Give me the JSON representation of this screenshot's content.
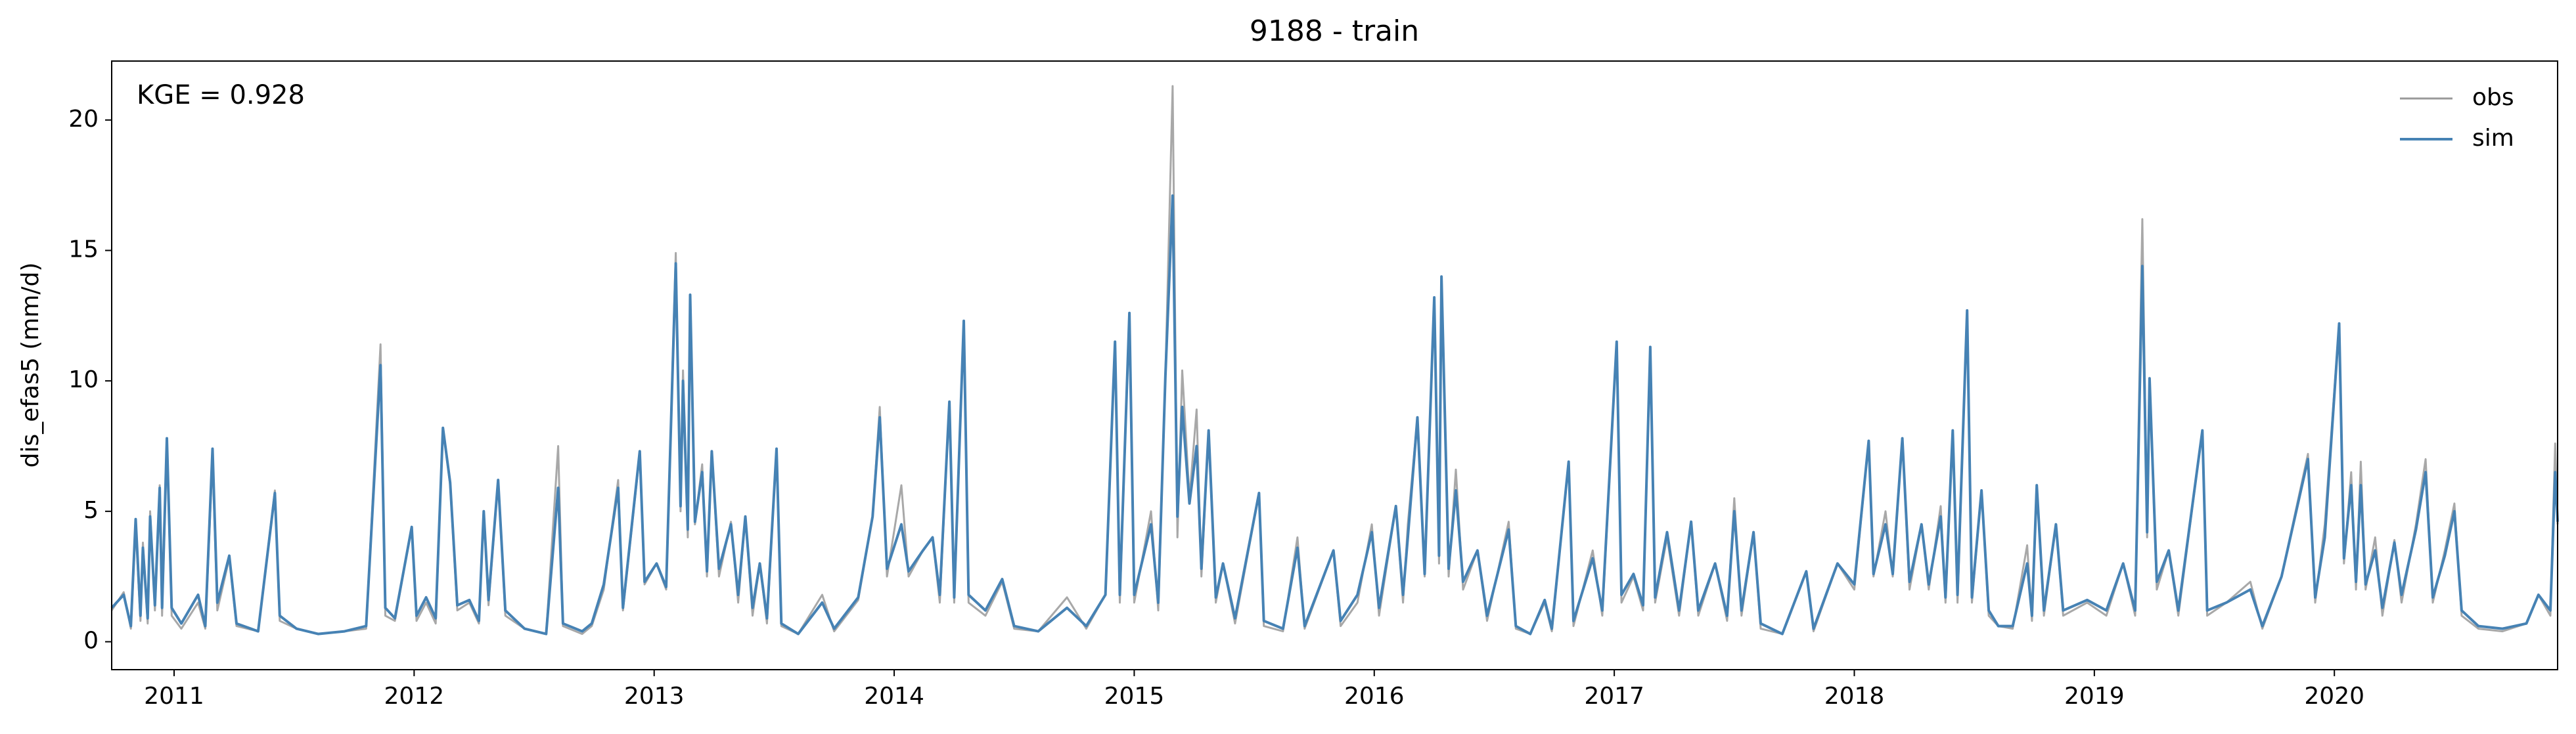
{
  "chart_data": {
    "type": "line",
    "title": "9188 - train",
    "ylabel": "dis_efas5 (mm/d)",
    "annotation": "KGE = 0.928",
    "legend": "upper right",
    "x": [
      2010.74,
      2010.79,
      2010.82,
      2010.84,
      2010.86,
      2010.87,
      2010.89,
      2010.9,
      2010.92,
      2010.94,
      2010.95,
      2010.97,
      2010.99,
      2011.03,
      2011.1,
      2011.13,
      2011.16,
      2011.18,
      2011.23,
      2011.26,
      2011.35,
      2011.42,
      2011.44,
      2011.51,
      2011.6,
      2011.71,
      2011.8,
      2011.86,
      2011.88,
      2011.92,
      2011.99,
      2012.01,
      2012.05,
      2012.09,
      2012.12,
      2012.15,
      2012.18,
      2012.23,
      2012.27,
      2012.29,
      2012.31,
      2012.35,
      2012.38,
      2012.46,
      2012.55,
      2012.6,
      2012.62,
      2012.7,
      2012.74,
      2012.79,
      2012.85,
      2012.87,
      2012.94,
      2012.96,
      2013.01,
      2013.05,
      2013.09,
      2013.11,
      2013.12,
      2013.14,
      2013.15,
      2013.17,
      2013.2,
      2013.22,
      2013.24,
      2013.27,
      2013.32,
      2013.35,
      2013.38,
      2013.41,
      2013.44,
      2013.47,
      2013.51,
      2013.53,
      2013.6,
      2013.7,
      2013.75,
      2013.85,
      2013.91,
      2013.94,
      2013.97,
      2014.03,
      2014.06,
      2014.12,
      2014.16,
      2014.19,
      2014.23,
      2014.25,
      2014.29,
      2014.31,
      2014.38,
      2014.45,
      2014.5,
      2014.6,
      2014.72,
      2014.8,
      2014.88,
      2014.92,
      2014.94,
      2014.98,
      2015,
      2015.07,
      2015.1,
      2015.13,
      2015.16,
      2015.18,
      2015.2,
      2015.23,
      2015.26,
      2015.28,
      2015.31,
      2015.34,
      2015.37,
      2015.42,
      2015.52,
      2015.54,
      2015.62,
      2015.68,
      2015.71,
      2015.83,
      2015.86,
      2015.93,
      2015.99,
      2016.02,
      2016.09,
      2016.12,
      2016.14,
      2016.18,
      2016.21,
      2016.25,
      2016.27,
      2016.28,
      2016.31,
      2016.34,
      2016.37,
      2016.43,
      2016.47,
      2016.56,
      2016.59,
      2016.65,
      2016.71,
      2016.74,
      2016.81,
      2016.83,
      2016.91,
      2016.95,
      2017.01,
      2017.03,
      2017.08,
      2017.12,
      2017.15,
      2017.17,
      2017.22,
      2017.27,
      2017.32,
      2017.35,
      2017.42,
      2017.47,
      2017.5,
      2017.53,
      2017.58,
      2017.61,
      2017.7,
      2017.8,
      2017.83,
      2017.93,
      2018,
      2018.06,
      2018.08,
      2018.13,
      2018.16,
      2018.2,
      2018.23,
      2018.28,
      2018.31,
      2018.36,
      2018.38,
      2018.41,
      2018.43,
      2018.47,
      2018.49,
      2018.53,
      2018.56,
      2018.6,
      2018.66,
      2018.72,
      2018.74,
      2018.76,
      2018.79,
      2018.84,
      2018.87,
      2018.97,
      2019.05,
      2019.12,
      2019.17,
      2019.2,
      2019.22,
      2019.23,
      2019.26,
      2019.31,
      2019.35,
      2019.45,
      2019.47,
      2019.55,
      2019.65,
      2019.7,
      2019.78,
      2019.89,
      2019.92,
      2019.96,
      2020.02,
      2020.04,
      2020.07,
      2020.09,
      2020.11,
      2020.13,
      2020.17,
      2020.2,
      2020.25,
      2020.28,
      2020.34,
      2020.38,
      2020.41,
      2020.46,
      2020.5,
      2020.53,
      2020.6,
      2020.7,
      2020.8,
      2020.85,
      2020.9,
      2020.92,
      2020.93
    ],
    "series": [
      {
        "name": "obs",
        "color": "#999999",
        "values": [
          1.2,
          1.9,
          0.5,
          4.4,
          0.8,
          3.8,
          0.7,
          5,
          1.2,
          6,
          1,
          7.6,
          1,
          0.5,
          1.5,
          0.5,
          7,
          1.2,
          3.2,
          0.6,
          0.4,
          5.8,
          0.8,
          0.5,
          0.3,
          0.4,
          0.5,
          11.4,
          1,
          0.8,
          4.4,
          0.8,
          1.5,
          0.7,
          8.2,
          6,
          1.2,
          1.5,
          0.7,
          5,
          1.4,
          6.2,
          1,
          0.5,
          0.3,
          7.5,
          0.6,
          0.3,
          0.6,
          2,
          6.2,
          1.2,
          7.2,
          2.2,
          3,
          2,
          14.9,
          5,
          10.4,
          4,
          13.3,
          4.5,
          6.8,
          2.5,
          7.3,
          2.5,
          4.6,
          1.5,
          4.8,
          1,
          3,
          0.7,
          7.4,
          0.6,
          0.3,
          1.8,
          0.4,
          1.6,
          4.8,
          9,
          2.5,
          6,
          2.5,
          3.5,
          4,
          1.5,
          9.2,
          1.5,
          12.3,
          1.5,
          1,
          2.3,
          0.5,
          0.4,
          1.7,
          0.5,
          1.8,
          11.5,
          1.5,
          12.6,
          1.5,
          5,
          1.2,
          10.2,
          21.3,
          4,
          10.4,
          5.5,
          8.9,
          2.5,
          8.1,
          1.5,
          3,
          0.7,
          5.7,
          0.6,
          0.4,
          4,
          0.5,
          3.5,
          0.6,
          1.5,
          4.5,
          1,
          5.2,
          1.5,
          4.5,
          8.6,
          2.5,
          13.2,
          3,
          14,
          2.5,
          6.6,
          2,
          3.5,
          0.8,
          4.6,
          0.5,
          0.3,
          1.5,
          0.4,
          6.9,
          0.6,
          3.5,
          1,
          11.5,
          1.5,
          2.5,
          1.2,
          11.3,
          1.5,
          4,
          1,
          4.6,
          1,
          3,
          0.8,
          5.5,
          1,
          4.2,
          0.5,
          0.3,
          2.7,
          0.4,
          3,
          2,
          7.7,
          2.5,
          5,
          2.5,
          7.8,
          2,
          4.5,
          2,
          5.2,
          1.5,
          8.1,
          1.5,
          12.7,
          1.5,
          5.8,
          1,
          0.6,
          0.5,
          3.7,
          0.8,
          6,
          1,
          4.5,
          1,
          1.5,
          1,
          3,
          1,
          16.2,
          4,
          10.1,
          2,
          3.5,
          1,
          8.1,
          1,
          1.5,
          2.3,
          0.5,
          2.5,
          7.2,
          1.5,
          4.5,
          12.2,
          3,
          6.5,
          2,
          6.9,
          2,
          4,
          1,
          3.9,
          1.5,
          4.5,
          7,
          1.5,
          3.5,
          5.3,
          1,
          0.5,
          0.4,
          0.7,
          1.8,
          1,
          7.6,
          4.5
        ]
      },
      {
        "name": "sim",
        "color": "#4682b4",
        "values": [
          1.3,
          1.8,
          0.6,
          4.7,
          1,
          3.6,
          0.9,
          4.8,
          1.4,
          5.9,
          1.3,
          7.8,
          1.3,
          0.7,
          1.8,
          0.6,
          7.4,
          1.5,
          3.3,
          0.7,
          0.4,
          5.7,
          1,
          0.5,
          0.3,
          0.4,
          0.6,
          10.6,
          1.3,
          0.9,
          4.4,
          1,
          1.7,
          0.9,
          8.2,
          6.1,
          1.4,
          1.6,
          0.8,
          5,
          1.6,
          6.2,
          1.2,
          0.5,
          0.3,
          5.9,
          0.7,
          0.4,
          0.7,
          2.2,
          5.9,
          1.3,
          7.3,
          2.3,
          3,
          2.1,
          14.5,
          5.2,
          10,
          4.3,
          13.3,
          4.6,
          6.5,
          2.7,
          7.3,
          2.8,
          4.5,
          1.8,
          4.8,
          1.3,
          3,
          0.9,
          7.4,
          0.7,
          0.3,
          1.5,
          0.5,
          1.7,
          4.8,
          8.6,
          2.8,
          4.5,
          2.7,
          3.5,
          4,
          1.8,
          9.2,
          1.7,
          12.3,
          1.8,
          1.2,
          2.4,
          0.6,
          0.4,
          1.3,
          0.6,
          1.8,
          11.5,
          1.8,
          12.6,
          1.8,
          4.5,
          1.5,
          10.2,
          17.1,
          4.8,
          9,
          5.3,
          7.5,
          2.8,
          8.1,
          1.7,
          3,
          0.9,
          5.7,
          0.8,
          0.5,
          3.6,
          0.6,
          3.5,
          0.8,
          1.8,
          4.2,
          1.3,
          5.2,
          1.8,
          4,
          8.6,
          2.6,
          13.2,
          3.3,
          14,
          2.8,
          5.8,
          2.3,
          3.5,
          1,
          4.3,
          0.6,
          0.3,
          1.6,
          0.5,
          6.9,
          0.8,
          3.2,
          1.2,
          11.5,
          1.8,
          2.6,
          1.4,
          11.3,
          1.7,
          4.2,
          1.2,
          4.6,
          1.2,
          3,
          1,
          5,
          1.2,
          4.2,
          0.7,
          0.3,
          2.7,
          0.5,
          3,
          2.2,
          7.7,
          2.6,
          4.5,
          2.6,
          7.8,
          2.3,
          4.5,
          2.2,
          4.8,
          1.7,
          8.1,
          1.8,
          12.7,
          1.7,
          5.8,
          1.2,
          0.6,
          0.6,
          3,
          1,
          6,
          1.2,
          4.5,
          1.2,
          1.6,
          1.2,
          3,
          1.2,
          14.4,
          4.2,
          10.1,
          2.3,
          3.5,
          1.2,
          8.1,
          1.2,
          1.5,
          2,
          0.6,
          2.5,
          7,
          1.7,
          4,
          12.2,
          3.2,
          6,
          2.3,
          6,
          2.2,
          3.5,
          1.3,
          3.8,
          1.8,
          4.3,
          6.5,
          1.7,
          3.3,
          5,
          1.2,
          0.6,
          0.5,
          0.7,
          1.8,
          1.2,
          6.5,
          4.6
        ]
      }
    ],
    "xlim": [
      2010.74,
      2020.93
    ],
    "xticks": [
      2011,
      2012,
      2013,
      2014,
      2015,
      2016,
      2017,
      2018,
      2019,
      2020
    ],
    "ylim": [
      -1.07,
      22.26
    ],
    "yticks": [
      0,
      5,
      10,
      15,
      20
    ]
  }
}
